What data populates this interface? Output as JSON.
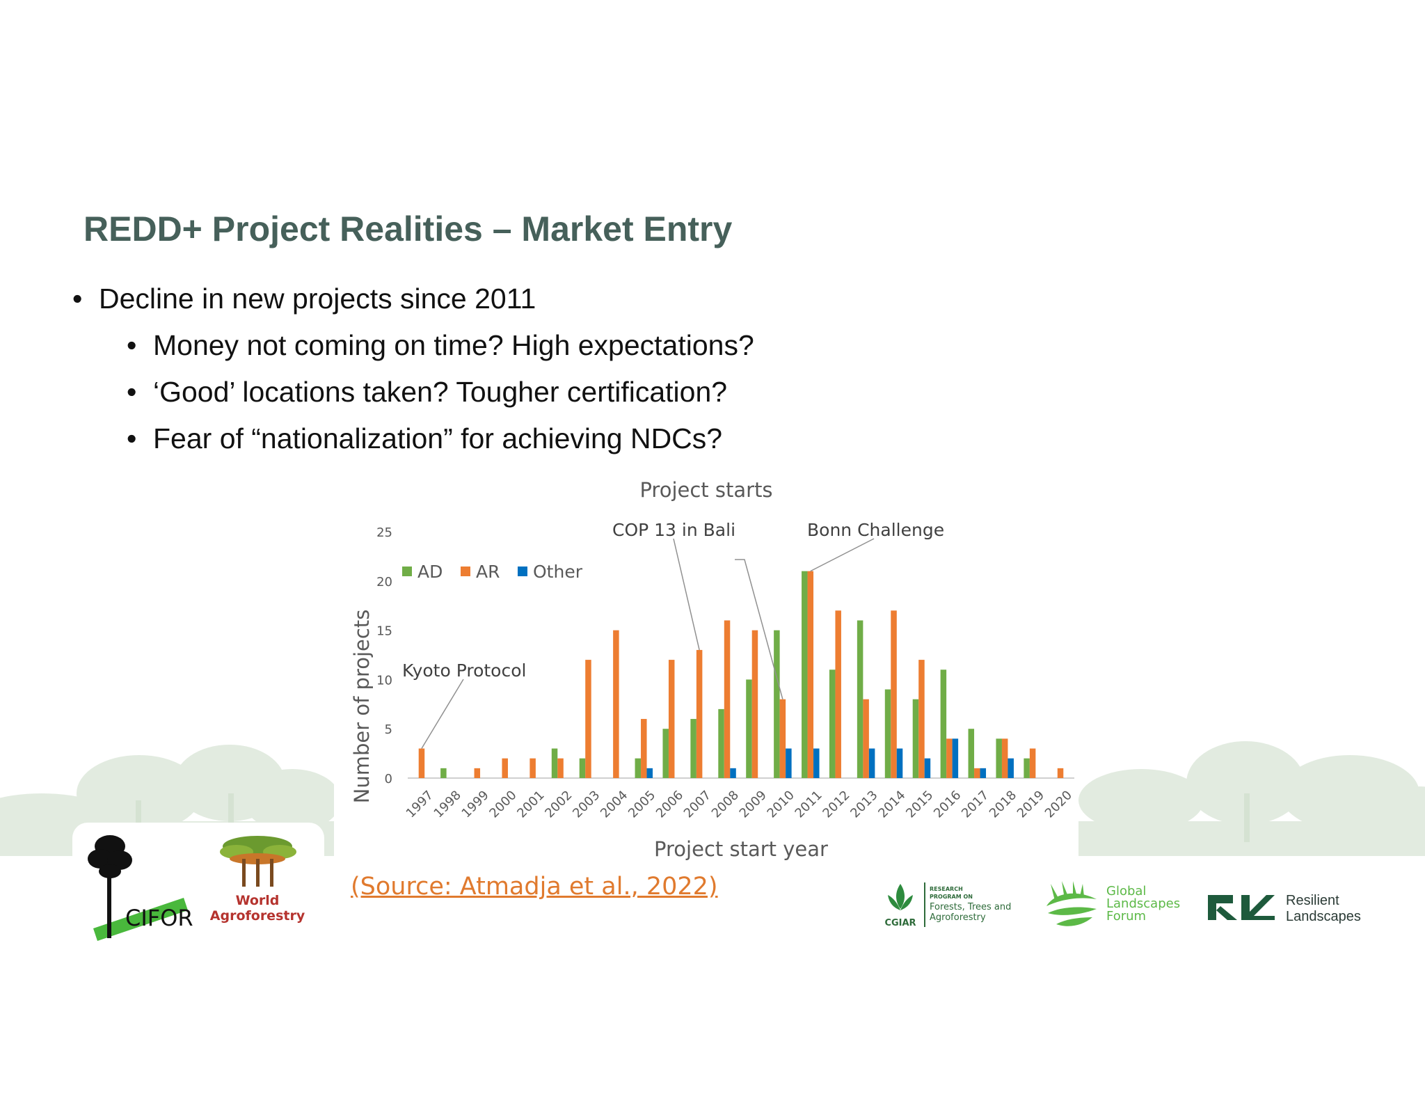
{
  "slide": {
    "title": "REDD+ Project Realities – Market Entry",
    "bullets": [
      {
        "level": 1,
        "text": "Decline in new projects since 2011"
      },
      {
        "level": 2,
        "text": "Money not coming on time? High expectations?"
      },
      {
        "level": 2,
        "text": "‘Good’ locations taken? Tougher certification?"
      },
      {
        "level": 2,
        "text": "Fear of “nationalization” for achieving NDCs?"
      }
    ],
    "bullet_char": "•",
    "source": "(Source: Atmadja et al., 2022)"
  },
  "logos": {
    "cifor": "CIFOR",
    "world_agroforestry_1": "World",
    "world_agroforestry_2": "Agroforestry",
    "cgiar_label": "CGIAR",
    "cgiar_line1": "RESEARCH",
    "cgiar_line2": "PROGRAM ON",
    "cgiar_line3": "Forests, Trees and",
    "cgiar_line4": "Agroforestry",
    "glf_1": "Global",
    "glf_2": "Landscapes",
    "glf_3": "Forum",
    "rl_1": "Resilient",
    "rl_2": "Landscapes"
  },
  "colors": {
    "title": "#46605a",
    "AD": "#70ad47",
    "AR": "#ed7d31",
    "Other": "#0070c0",
    "source_link": "#e07a2e"
  },
  "chart_data": {
    "type": "bar",
    "title": "Project starts",
    "xlabel": "Project start year",
    "ylabel": "Number of projects",
    "ylim": [
      0,
      25
    ],
    "yticks": [
      0,
      5,
      10,
      15,
      20,
      25
    ],
    "grid": false,
    "legend": "top-left",
    "categories": [
      "1997",
      "1998",
      "1999",
      "2000",
      "2001",
      "2002",
      "2003",
      "2004",
      "2005",
      "2006",
      "2007",
      "2008",
      "2009",
      "2010",
      "2011",
      "2012",
      "2013",
      "2014",
      "2015",
      "2016",
      "2017",
      "2018",
      "2019",
      "2020"
    ],
    "series": [
      {
        "name": "AD",
        "color": "#70ad47",
        "values": [
          0,
          1,
          0,
          0,
          0,
          3,
          2,
          0,
          2,
          5,
          6,
          7,
          10,
          15,
          21,
          11,
          16,
          9,
          8,
          11,
          5,
          4,
          2,
          0
        ]
      },
      {
        "name": "AR",
        "color": "#ed7d31",
        "values": [
          3,
          0,
          1,
          2,
          2,
          2,
          12,
          15,
          6,
          12,
          13,
          16,
          15,
          8,
          21,
          17,
          8,
          17,
          12,
          4,
          1,
          4,
          3,
          1
        ]
      },
      {
        "name": "Other",
        "color": "#0070c0",
        "values": [
          0,
          0,
          0,
          0,
          0,
          0,
          0,
          0,
          1,
          0,
          0,
          1,
          0,
          3,
          3,
          0,
          3,
          3,
          2,
          4,
          1,
          2,
          0,
          0
        ]
      }
    ],
    "annotations": [
      {
        "text": "Kyoto Protocol",
        "category": "1997",
        "series": "AR"
      },
      {
        "text": "COP 13 in Bali",
        "category": "2007",
        "series": "AR"
      },
      {
        "text": "",
        "category": "2010",
        "series": "AR"
      },
      {
        "text": "Bonn Challenge",
        "category": "2011",
        "series": "AR"
      }
    ]
  }
}
